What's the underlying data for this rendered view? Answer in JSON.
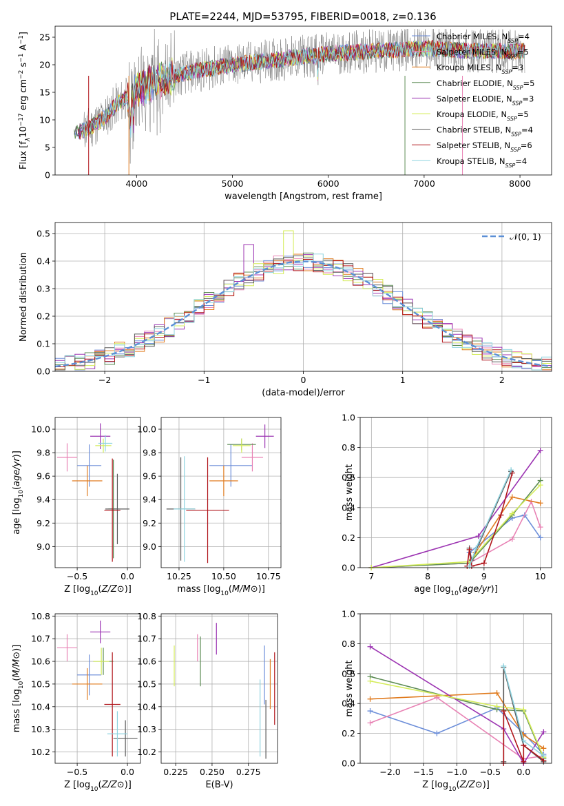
{
  "colors": {
    "Chabrier MILES": "#6c8ed9",
    "Salpeter MILES": "#e882b4",
    "Kroupa MILES": "#e07b1f",
    "Chabrier ELODIE": "#5d8c55",
    "Salpeter ELODIE": "#9c34b2",
    "Kroupa ELODIE": "#d4ec5a",
    "Chabrier STELIB": "#5a5a5a",
    "Salpeter STELIB": "#b0141a",
    "Kroupa STELIB": "#8ed3df"
  },
  "chart_data": [
    {
      "type": "line",
      "title": "PLATE=2244, MJD=53795, FIBERID=0018, z=0.136",
      "xlabel": "wavelength [Angstrom, rest frame]",
      "ylabel": "Flux [f_λ10^-17 erg cm^-2 s^-1 A^-1]",
      "xlim": [
        3150,
        8330
      ],
      "ylim": [
        0,
        27
      ],
      "xticks": [
        4000,
        5000,
        6000,
        7000,
        8000
      ],
      "yticks": [
        0,
        5,
        10,
        15,
        20,
        25
      ],
      "grid": false,
      "legend_placement": "top-right",
      "spectrum_envelope": {
        "x": [
          3350,
          3500,
          3600,
          3700,
          3800,
          3900,
          4000,
          4200,
          4500,
          5000,
          5500,
          6000,
          6500,
          7000,
          7500,
          8000,
          8050
        ],
        "y": [
          7.5,
          8.5,
          9.5,
          11,
          13,
          14,
          15.5,
          17,
          18.5,
          20,
          21,
          22,
          22.5,
          23,
          22.5,
          22.5,
          22.5
        ]
      },
      "legend": [
        {
          "base": "Chabrier MILES, N",
          "sub": "SSP",
          "tail": "=4"
        },
        {
          "base": "Salpeter MILES, N",
          "sub": "SSP",
          "tail": "=5"
        },
        {
          "base": "Kroupa MILES, N",
          "sub": "SSP",
          "tail": "=3"
        },
        {
          "base": "Chabrier ELODIE, N",
          "sub": "SSP",
          "tail": "=5"
        },
        {
          "base": "Salpeter ELODIE, N",
          "sub": "SSP",
          "tail": "=3"
        },
        {
          "base": "Kroupa ELODIE, N",
          "sub": "SSP",
          "tail": "=5"
        },
        {
          "base": "Chabrier STELIB, N",
          "sub": "SSP",
          "tail": "=4"
        },
        {
          "base": "Salpeter STELIB, N",
          "sub": "SSP",
          "tail": "=6"
        },
        {
          "base": "Kroupa STELIB, N",
          "sub": "SSP",
          "tail": "=4"
        }
      ]
    },
    {
      "type": "line",
      "xlabel": "(data-model)/error",
      "ylabel": "Normed distribution",
      "xlim": [
        -2.5,
        2.5
      ],
      "ylim": [
        0,
        0.54
      ],
      "xticks": [
        -2,
        -1,
        0,
        1,
        2
      ],
      "yticks": [
        0.0,
        0.1,
        0.2,
        0.3,
        0.4,
        0.5
      ],
      "grid": true,
      "legend_placement": "top-right",
      "legend": "𝒩(0, 1)",
      "bin_width": 0.1
    },
    {
      "type": "scatter",
      "xlabel": "Z [log10(Z/Z⊙)]",
      "ylabel": "age [log10(age/yr)]",
      "xlim": [
        -0.72,
        0.13
      ],
      "ylim": [
        8.82,
        10.1
      ],
      "xticks": [
        -0.5,
        0.0
      ],
      "yticks": [
        9.0,
        9.2,
        9.4,
        9.6,
        9.8,
        10.0
      ],
      "points": [
        {
          "series": "Chabrier MILES",
          "x": -0.38,
          "y": 9.69,
          "xerr": 0.12,
          "yerr": 0.18
        },
        {
          "series": "Salpeter MILES",
          "x": -0.6,
          "y": 9.76,
          "xerr": 0.1,
          "yerr": 0.12
        },
        {
          "series": "Kroupa MILES",
          "x": -0.4,
          "y": 9.56,
          "xerr": 0.15,
          "yerr": 0.13
        },
        {
          "series": "Chabrier ELODIE",
          "x": -0.14,
          "y": 9.32,
          "xerr": 0.05,
          "yerr": 0.42
        },
        {
          "series": "Salpeter ELODIE",
          "x": -0.27,
          "y": 9.94,
          "xerr": 0.1,
          "yerr": 0.11
        },
        {
          "series": "Kroupa ELODIE",
          "x": -0.24,
          "y": 9.86,
          "xerr": 0.08,
          "yerr": 0.06
        },
        {
          "series": "Chabrier STELIB",
          "x": -0.1,
          "y": 9.32,
          "xerr": 0.12,
          "yerr": 0.3
        },
        {
          "series": "Salpeter STELIB",
          "x": -0.15,
          "y": 9.31,
          "xerr": 0.08,
          "yerr": 0.44
        },
        {
          "series": "Kroupa STELIB",
          "x": -0.22,
          "y": 9.88,
          "xerr": 0.07,
          "yerr": 0.07
        }
      ]
    },
    {
      "type": "scatter",
      "xlabel": "mass [log10(M/M⊙)]",
      "ylabel": "",
      "xlim": [
        10.15,
        10.82
      ],
      "ylim": [
        8.82,
        10.1
      ],
      "xticks": [
        10.25,
        10.5,
        10.75
      ],
      "yticks": [
        9.0,
        9.2,
        9.4,
        9.6,
        9.8,
        10.0
      ],
      "points": [
        {
          "series": "Chabrier MILES",
          "x": 10.54,
          "y": 9.69,
          "xerr": 0.12,
          "yerr": 0.18
        },
        {
          "series": "Salpeter MILES",
          "x": 10.66,
          "y": 9.76,
          "xerr": 0.06,
          "yerr": 0.12
        },
        {
          "series": "Kroupa MILES",
          "x": 10.5,
          "y": 9.56,
          "xerr": 0.08,
          "yerr": 0.13
        },
        {
          "series": "Chabrier ELODIE",
          "x": 10.6,
          "y": 9.87,
          "xerr": 0.08,
          "yerr": 0.05
        },
        {
          "series": "Salpeter ELODIE",
          "x": 10.73,
          "y": 9.94,
          "xerr": 0.05,
          "yerr": 0.1
        },
        {
          "series": "Kroupa ELODIE",
          "x": 10.6,
          "y": 9.86,
          "xerr": 0.05,
          "yerr": 0.06
        },
        {
          "series": "Chabrier STELIB",
          "x": 10.26,
          "y": 9.32,
          "xerr": 0.08,
          "yerr": 0.44
        },
        {
          "series": "Salpeter STELIB",
          "x": 10.41,
          "y": 9.31,
          "xerr": 0.12,
          "yerr": 0.45
        },
        {
          "series": "Kroupa STELIB",
          "x": 10.28,
          "y": 9.32,
          "xerr": 0.06,
          "yerr": 0.45
        }
      ]
    },
    {
      "type": "line",
      "xlabel": "age [log10(age/yr)]",
      "ylabel": "mass weight",
      "xlim": [
        6.8,
        10.2
      ],
      "ylim": [
        0,
        1.0
      ],
      "xticks": [
        7,
        8,
        9,
        10
      ],
      "yticks": [
        0.0,
        0.2,
        0.4,
        0.6,
        0.8,
        1.0
      ],
      "grid": true,
      "series": [
        {
          "name": "Chabrier MILES",
          "x": [
            8.74,
            9.5,
            9.72,
            10.0
          ],
          "y": [
            0.1,
            0.33,
            0.35,
            0.2
          ]
        },
        {
          "name": "Salpeter MILES",
          "x": [
            7.0,
            8.74,
            9.5,
            9.84,
            10.0
          ],
          "y": [
            0.0,
            0.03,
            0.19,
            0.44,
            0.27
          ]
        },
        {
          "name": "Kroupa MILES",
          "x": [
            8.85,
            9.5,
            10.0
          ],
          "y": [
            0.1,
            0.47,
            0.43
          ]
        },
        {
          "name": "Chabrier ELODIE",
          "x": [
            7.0,
            8.74,
            9.5,
            10.0
          ],
          "y": [
            0.0,
            0.03,
            0.35,
            0.58
          ]
        },
        {
          "name": "Salpeter ELODIE",
          "x": [
            7.0,
            8.9,
            10.0
          ],
          "y": [
            0.0,
            0.21,
            0.78
          ]
        },
        {
          "name": "Kroupa ELODIE",
          "x": [
            7.0,
            8.74,
            9.5,
            10.0
          ],
          "y": [
            0.0,
            0.04,
            0.36,
            0.55
          ]
        },
        {
          "name": "Chabrier STELIB",
          "x": [
            8.74,
            8.78,
            9.48
          ],
          "y": [
            0.13,
            0.05,
            0.64
          ]
        },
        {
          "name": "Salpeter STELIB",
          "x": [
            8.7,
            8.74,
            8.78,
            9.0,
            9.3,
            9.5
          ],
          "y": [
            0.01,
            0.12,
            0.01,
            0.03,
            0.35,
            0.63
          ]
        },
        {
          "name": "Kroupa STELIB",
          "x": [
            8.74,
            8.86,
            9.48
          ],
          "y": [
            0.01,
            0.13,
            0.65
          ]
        }
      ]
    },
    {
      "type": "scatter",
      "xlabel": "Z [log10(Z/Z⊙)]",
      "ylabel": "mass [log10(M/M⊙)]",
      "xlim": [
        -0.72,
        0.13
      ],
      "ylim": [
        10.15,
        10.81
      ],
      "xticks": [
        -0.5,
        0.0
      ],
      "yticks": [
        10.2,
        10.3,
        10.4,
        10.5,
        10.6,
        10.7,
        10.8
      ],
      "points": [
        {
          "series": "Chabrier MILES",
          "x": -0.38,
          "y": 10.54,
          "xerr": 0.12,
          "yerr": 0.09
        },
        {
          "series": "Salpeter MILES",
          "x": -0.6,
          "y": 10.66,
          "xerr": 0.1,
          "yerr": 0.06
        },
        {
          "series": "Kroupa MILES",
          "x": -0.4,
          "y": 10.5,
          "xerr": 0.15,
          "yerr": 0.07
        },
        {
          "series": "Chabrier ELODIE",
          "x": -0.24,
          "y": 10.6,
          "xerr": 0.1,
          "yerr": 0.06
        },
        {
          "series": "Salpeter ELODIE",
          "x": -0.27,
          "y": 10.73,
          "xerr": 0.1,
          "yerr": 0.05
        },
        {
          "series": "Kroupa ELODIE",
          "x": -0.26,
          "y": 10.6,
          "xerr": 0.08,
          "yerr": 0.06
        },
        {
          "series": "Chabrier STELIB",
          "x": -0.02,
          "y": 10.26,
          "xerr": 0.12,
          "yerr": 0.08
        },
        {
          "series": "Salpeter STELIB",
          "x": -0.15,
          "y": 10.41,
          "xerr": 0.08,
          "yerr": 0.23
        },
        {
          "series": "Kroupa STELIB",
          "x": -0.1,
          "y": 10.28,
          "xerr": 0.1,
          "yerr": 0.1
        }
      ]
    },
    {
      "type": "scatter",
      "xlabel": "E(B-V)",
      "ylabel": "",
      "xlim": [
        0.215,
        0.295
      ],
      "ylim": [
        10.15,
        10.81
      ],
      "xticks": [
        0.225,
        0.25,
        0.275
      ],
      "yticks": [
        10.2,
        10.3,
        10.4,
        10.5,
        10.6,
        10.7,
        10.8
      ],
      "points": [
        {
          "series": "Chabrier MILES",
          "x": 0.286,
          "y": 10.54,
          "xerr": 0,
          "yerr": 0.13
        },
        {
          "series": "Salpeter MILES",
          "x": 0.24,
          "y": 10.66,
          "xerr": 0,
          "yerr": 0.06
        },
        {
          "series": "Kroupa MILES",
          "x": 0.29,
          "y": 10.5,
          "xerr": 0,
          "yerr": 0.11
        },
        {
          "series": "Chabrier ELODIE",
          "x": 0.242,
          "y": 10.6,
          "xerr": 0,
          "yerr": 0.11
        },
        {
          "series": "Salpeter ELODIE",
          "x": 0.253,
          "y": 10.7,
          "xerr": 0,
          "yerr": 0.07
        },
        {
          "series": "Kroupa ELODIE",
          "x": 0.224,
          "y": 10.58,
          "xerr": 0,
          "yerr": 0.09
        },
        {
          "series": "Chabrier STELIB",
          "x": 0.287,
          "y": 10.3,
          "xerr": 0,
          "yerr": 0.13
        },
        {
          "series": "Salpeter STELIB",
          "x": 0.293,
          "y": 10.48,
          "xerr": 0,
          "yerr": 0.16
        },
        {
          "series": "Kroupa STELIB",
          "x": 0.283,
          "y": 10.35,
          "xerr": 0,
          "yerr": 0.17
        }
      ]
    },
    {
      "type": "line",
      "xlabel": "Z [log10(Z/Z⊙)]",
      "ylabel": "mass weight",
      "xlim": [
        -2.45,
        0.42
      ],
      "ylim": [
        0,
        1.0
      ],
      "xticks": [
        -2.0,
        -1.5,
        -1.0,
        -0.5,
        0.0
      ],
      "yticks": [
        0.0,
        0.2,
        0.4,
        0.6,
        0.8,
        1.0
      ],
      "grid": true,
      "series": [
        {
          "name": "Chabrier MILES",
          "x": [
            -2.3,
            -1.3,
            -0.4,
            0.0,
            0.3
          ],
          "y": [
            0.35,
            0.2,
            0.37,
            0.2,
            0.06
          ]
        },
        {
          "name": "Salpeter MILES",
          "x": [
            -2.3,
            -1.3,
            0.0,
            0.3
          ],
          "y": [
            0.27,
            0.44,
            0.03,
            0.05
          ]
        },
        {
          "name": "Kroupa MILES",
          "x": [
            -2.3,
            -0.4,
            0.0,
            0.3
          ],
          "y": [
            0.43,
            0.47,
            0.19,
            0.1
          ]
        },
        {
          "name": "Chabrier ELODIE",
          "x": [
            -2.3,
            -0.4,
            0.0,
            0.3
          ],
          "y": [
            0.58,
            0.36,
            0.35,
            0.03
          ]
        },
        {
          "name": "Salpeter ELODIE",
          "x": [
            -2.3,
            -0.3,
            0.0,
            0.3
          ],
          "y": [
            0.78,
            0.23,
            0.0,
            0.21
          ]
        },
        {
          "name": "Kroupa ELODIE",
          "x": [
            -2.3,
            -0.4,
            0.0,
            0.3
          ],
          "y": [
            0.55,
            0.38,
            0.36,
            0.04
          ]
        },
        {
          "name": "Chabrier STELIB",
          "x": [
            -0.3,
            -0.3,
            0.0,
            0.3
          ],
          "y": [
            0.01,
            0.64,
            0.12,
            0.01
          ]
        },
        {
          "name": "Salpeter STELIB",
          "x": [
            -0.3,
            -0.3,
            0.0,
            0.0,
            0.3
          ],
          "y": [
            0.0,
            0.35,
            0.01,
            0.12,
            0.02
          ]
        },
        {
          "name": "Kroupa STELIB",
          "x": [
            -0.3,
            0.0,
            0.3
          ],
          "y": [
            0.65,
            0.15,
            0.05
          ]
        }
      ]
    }
  ]
}
